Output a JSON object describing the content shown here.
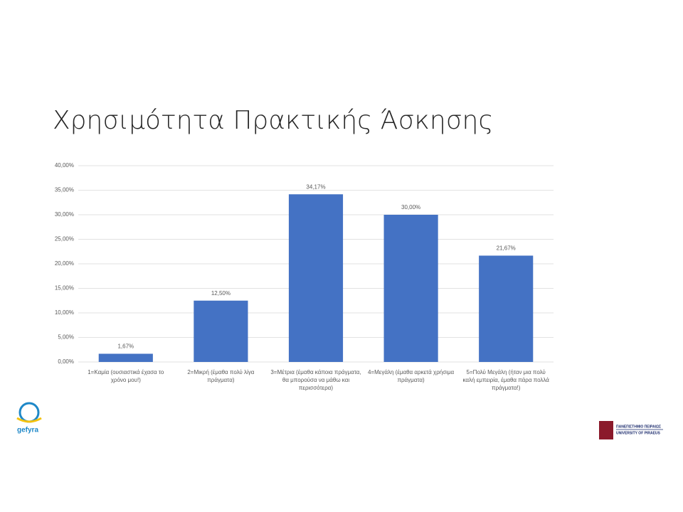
{
  "chart_data": {
    "type": "bar",
    "title": "Χρησιμότητα Πρακτικής Άσκησης",
    "categories": [
      "1=Καμία (ουσιαστικά έχασα το χρόνο μου!)",
      "2=Μικρή (έμαθα πολύ λίγα πράγματα)",
      "3=Μέτρια (έμαθα κάποια πράγματα, θα μπορούσα να μάθω και περισσότερα)",
      "4=Μεγάλη (έμαθα αρκετά χρήσιμα πράγματα)",
      "5=Πολύ Μεγάλη (ήταν μια πολύ καλή εμπειρία, έμαθα πάρα πολλά πράγματα!)"
    ],
    "values": [
      1.67,
      12.5,
      34.17,
      30,
      21.67
    ],
    "value_labels": [
      "1,67%",
      "12,50%",
      "34,17%",
      "30,00%",
      "21,67%"
    ],
    "color": "#4472c4",
    "ylim": [
      0,
      40
    ],
    "yticks": [
      {
        "value": 0,
        "label": "0,00%"
      },
      {
        "value": 5,
        "label": "5,00%"
      },
      {
        "value": 10,
        "label": "10,00%"
      },
      {
        "value": 15,
        "label": "15,00%"
      },
      {
        "value": 20,
        "label": "20,00%"
      },
      {
        "value": 25,
        "label": "25,00%"
      },
      {
        "value": 30,
        "label": "30,00%"
      },
      {
        "value": 35,
        "label": "35,00%"
      },
      {
        "value": 40,
        "label": "40,00%"
      }
    ],
    "grid": true
  },
  "logos": {
    "left": "gefyra",
    "right_top": "ΠΑΝΕΠΙΣΤΗΜΙΟ ΠΕΙΡΑΙΩΣ",
    "right_bottom": "UNIVERSITY OF PIRAEUS"
  }
}
